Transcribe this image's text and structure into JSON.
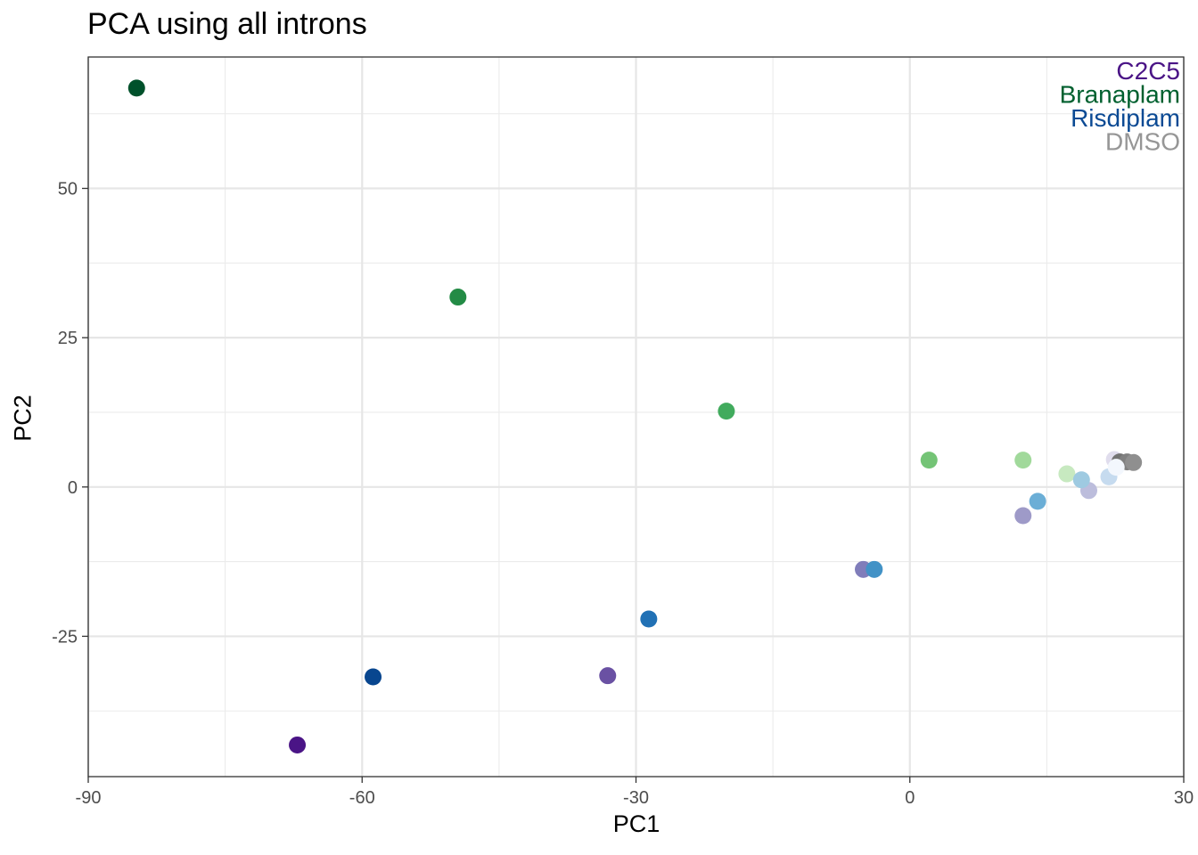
{
  "chart_data": {
    "type": "scatter",
    "title": "PCA using all introns",
    "xlabel": "PC1",
    "ylabel": "PC2",
    "xlim": [
      -90,
      30
    ],
    "ylim": [
      -48.5,
      72
    ],
    "x_ticks": [
      -90,
      -60,
      -30,
      0,
      30
    ],
    "x_tick_labels": [
      "-90",
      "-60",
      "-30",
      "0",
      "30"
    ],
    "y_ticks": [
      -25,
      0,
      25,
      50
    ],
    "y_tick_labels": [
      "-25",
      "0",
      "25",
      "50"
    ],
    "grid": true,
    "legend_position": "top-right",
    "legend": [
      {
        "label": "C2C5",
        "color": "#4a1486"
      },
      {
        "label": "Branaplam",
        "color": "#00602f"
      },
      {
        "label": "Risdiplam",
        "color": "#0b4a94"
      },
      {
        "label": "DMSO",
        "color": "#969696"
      }
    ],
    "points": [
      {
        "x": -84.7,
        "y": 66.8,
        "color": "#00512b"
      },
      {
        "x": -49.5,
        "y": 31.8,
        "color": "#238b45"
      },
      {
        "x": -20.1,
        "y": 12.7,
        "color": "#41ab5d"
      },
      {
        "x": 2.1,
        "y": 4.5,
        "color": "#74c476"
      },
      {
        "x": 12.4,
        "y": 4.5,
        "color": "#a1d99b"
      },
      {
        "x": 17.2,
        "y": 2.2,
        "color": "#c7e9c0"
      },
      {
        "x": -67.1,
        "y": -43.2,
        "color": "#4a1486"
      },
      {
        "x": -33.1,
        "y": -31.6,
        "color": "#6a51a3"
      },
      {
        "x": -5.1,
        "y": -13.8,
        "color": "#807dba"
      },
      {
        "x": 12.4,
        "y": -4.8,
        "color": "#9e9ac8"
      },
      {
        "x": 19.6,
        "y": -0.6,
        "color": "#bcbddc"
      },
      {
        "x": 22.4,
        "y": 4.6,
        "color": "#e0dded"
      },
      {
        "x": -58.8,
        "y": -31.8,
        "color": "#08468f"
      },
      {
        "x": -28.6,
        "y": -22.1,
        "color": "#2171b5"
      },
      {
        "x": -3.9,
        "y": -13.8,
        "color": "#4292c6"
      },
      {
        "x": 14.0,
        "y": -2.4,
        "color": "#6baed6"
      },
      {
        "x": 18.8,
        "y": 1.2,
        "color": "#9ecae1"
      },
      {
        "x": 21.8,
        "y": 1.7,
        "color": "#c6dbef"
      },
      {
        "x": 23.0,
        "y": 4.2,
        "color": "#737373"
      },
      {
        "x": 23.8,
        "y": 4.2,
        "color": "#808080"
      },
      {
        "x": 24.5,
        "y": 4.1,
        "color": "#8f8f8f"
      },
      {
        "x": 22.6,
        "y": 3.3,
        "color": "#f3f7fd"
      }
    ]
  }
}
